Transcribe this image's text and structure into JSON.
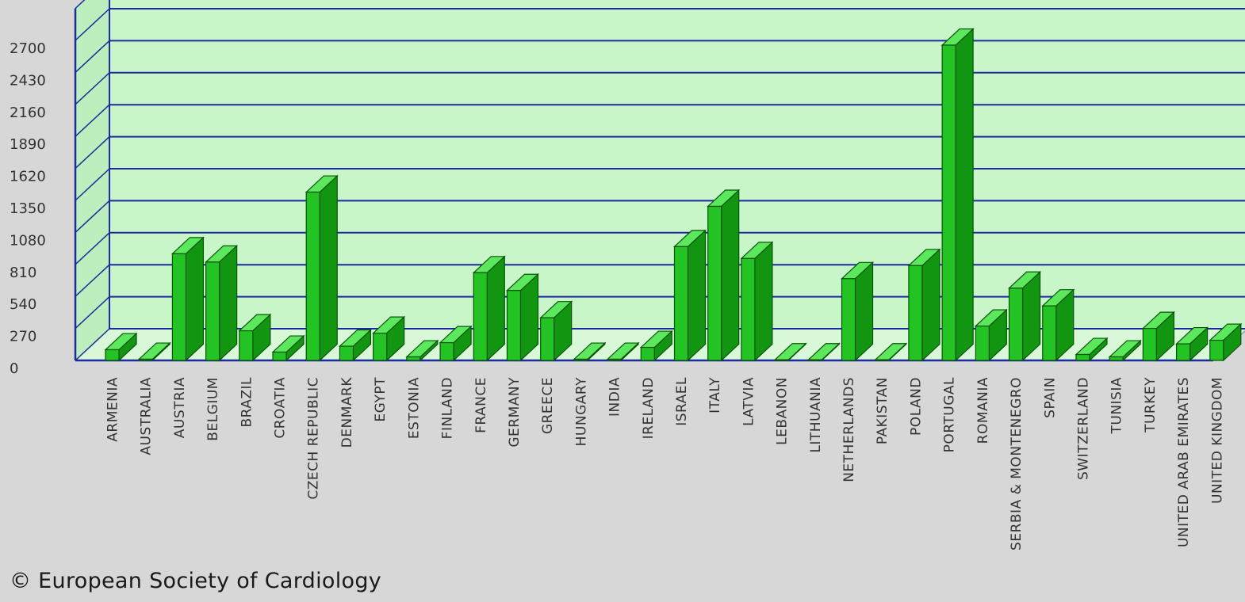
{
  "chart_data": {
    "type": "bar",
    "style": "3d",
    "title": "",
    "xlabel": "",
    "ylabel": "",
    "ylim": [
      0,
      2970
    ],
    "yticks": [
      0,
      270,
      540,
      810,
      1080,
      1350,
      1620,
      1890,
      2160,
      2430,
      2700
    ],
    "grid": true,
    "categories": [
      "ARMENIA",
      "AUSTRALIA",
      "AUSTRIA",
      "BELGIUM",
      "BRAZIL",
      "CROATIA",
      "CZECH REPUBLIC",
      "DENMARK",
      "EGYPT",
      "ESTONIA",
      "FINLAND",
      "FRANCE",
      "GERMANY",
      "GREECE",
      "HUNGARY",
      "INDIA",
      "IRELAND",
      "ISRAEL",
      "ITALY",
      "LATVIA",
      "LEBANON",
      "LITHUANIA",
      "NETHERLANDS",
      "PAKISTAN",
      "POLAND",
      "PORTUGAL",
      "ROMANIA",
      "SERBIA & MONTENEGRO",
      "SPAIN",
      "SWITZERLAND",
      "TUNISIA",
      "TURKEY",
      "UNITED ARAB EMIRATES",
      "UNITED KINGDOM"
    ],
    "values": [
      90,
      10,
      900,
      830,
      250,
      70,
      1420,
      120,
      230,
      30,
      150,
      740,
      590,
      360,
      10,
      10,
      110,
      960,
      1300,
      860,
      5,
      5,
      690,
      5,
      800,
      2660,
      290,
      610,
      460,
      50,
      30,
      270,
      140,
      170
    ],
    "colors": {
      "bar_front": "#22c322",
      "bar_side": "#129612",
      "bar_top": "#5ce85c",
      "bar_stroke": "#0a520a",
      "plot_background": "#c8f6c8",
      "gridline": "#1d2b9e",
      "page_background": "#d7d7d7"
    }
  },
  "footer": {
    "copyright": "© European Society of Cardiology"
  }
}
